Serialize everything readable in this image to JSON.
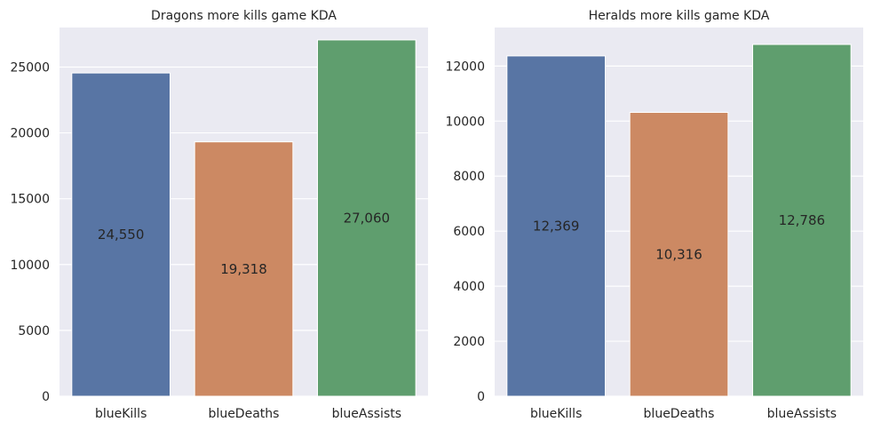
{
  "chart_data": [
    {
      "type": "bar",
      "title": "Dragons more kills game KDA",
      "categories": [
        "blueKills",
        "blueDeaths",
        "blueAssists"
      ],
      "values": [
        24550,
        19318,
        27060
      ],
      "data_labels": [
        "24,550",
        "19,318",
        "27,060"
      ],
      "colors": [
        "#5875a4",
        "#cc8963",
        "#5f9e6e"
      ],
      "ylim": [
        0,
        28000
      ],
      "yticks": [
        0,
        5000,
        10000,
        15000,
        20000,
        25000
      ],
      "ytick_labels": [
        "0",
        "5000",
        "10000",
        "15000",
        "20000",
        "25000"
      ],
      "xlabel": "",
      "ylabel": "",
      "grid": true,
      "legend": "none"
    },
    {
      "type": "bar",
      "title": "Heralds more kills game KDA",
      "categories": [
        "blueKills",
        "blueDeaths",
        "blueAssists"
      ],
      "values": [
        12369,
        10316,
        12786
      ],
      "data_labels": [
        "12,369",
        "10,316",
        "12,786"
      ],
      "colors": [
        "#5875a4",
        "#cc8963",
        "#5f9e6e"
      ],
      "ylim": [
        0,
        13400
      ],
      "yticks": [
        0,
        2000,
        4000,
        6000,
        8000,
        10000,
        12000
      ],
      "ytick_labels": [
        "0",
        "2000",
        "4000",
        "6000",
        "8000",
        "10000",
        "12000"
      ],
      "xlabel": "",
      "ylabel": "",
      "grid": true,
      "legend": "none"
    }
  ]
}
